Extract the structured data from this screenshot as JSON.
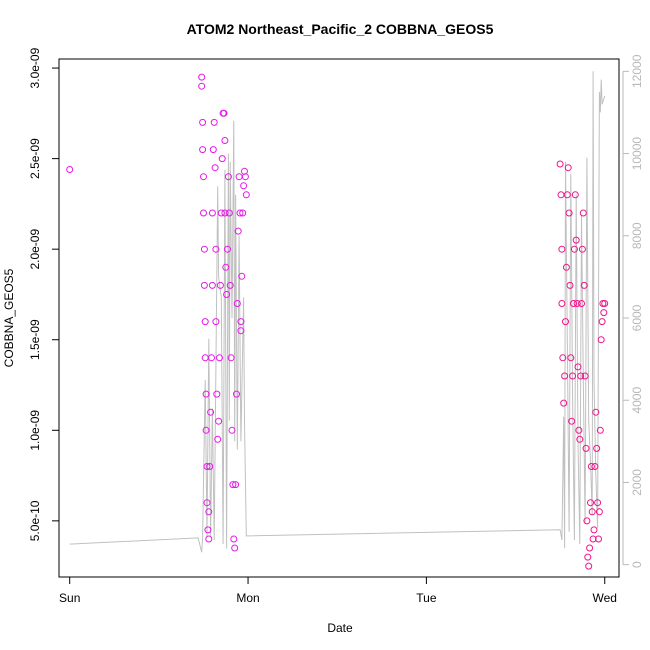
{
  "chart_data": {
    "type": "scatter",
    "title": "ATOM2 Northeast_Pacific_2 COBBNA_GEOS5",
    "xlabel": "Date",
    "ylabel": "COBBNA_GEOS5",
    "x_axis": {
      "kind": "time",
      "range_days": [
        -0.06,
        3.08
      ],
      "ticks": [
        {
          "value": 0,
          "label": "Sun"
        },
        {
          "value": 1,
          "label": "Mon"
        },
        {
          "value": 2,
          "label": "Tue"
        },
        {
          "value": 3,
          "label": "Wed"
        }
      ]
    },
    "y_axis": {
      "range": [
        1.9e-10,
        3.05e-09
      ],
      "ticks": [
        {
          "value": 5e-10,
          "label": "5.0e-10"
        },
        {
          "value": 1e-09,
          "label": "1.0e-09"
        },
        {
          "value": 1.5e-09,
          "label": "1.5e-09"
        },
        {
          "value": 2e-09,
          "label": "2.0e-09"
        },
        {
          "value": 2.5e-09,
          "label": "2.5e-09"
        },
        {
          "value": 3e-09,
          "label": "3.0e-09"
        }
      ]
    },
    "y2_axis": {
      "range": [
        -300,
        12300
      ],
      "color": "#b8b8b8",
      "ticks": [
        {
          "value": 0,
          "label": "0"
        },
        {
          "value": 2000,
          "label": "2000"
        },
        {
          "value": 4000,
          "label": "4000"
        },
        {
          "value": 6000,
          "label": "6000"
        },
        {
          "value": 8000,
          "label": "8000"
        },
        {
          "value": 10000,
          "label": "10000"
        },
        {
          "value": 12000,
          "label": "12000"
        }
      ]
    },
    "grid": false,
    "legend": "none",
    "colors": {
      "early_points": "#e61ae6",
      "late_points": "#f0148c",
      "altitude_line": "#c0c0c0"
    },
    "altitude_series": {
      "axis": "right",
      "points": [
        [
          0.0,
          500
        ],
        [
          0.72,
          650
        ],
        [
          0.74,
          300
        ],
        [
          0.745,
          650
        ],
        [
          0.76,
          4500
        ],
        [
          0.77,
          700
        ],
        [
          0.78,
          5500
        ],
        [
          0.79,
          700
        ],
        [
          0.8,
          3800
        ],
        [
          0.81,
          600
        ],
        [
          0.83,
          9200
        ],
        [
          0.835,
          7000
        ],
        [
          0.85,
          6500
        ],
        [
          0.86,
          500
        ],
        [
          0.87,
          9600
        ],
        [
          0.88,
          400
        ],
        [
          0.89,
          10000
        ],
        [
          0.895,
          3500
        ],
        [
          0.9,
          9800
        ],
        [
          0.91,
          6000
        ],
        [
          0.92,
          10800
        ],
        [
          0.925,
          3000
        ],
        [
          0.93,
          9000
        ],
        [
          0.94,
          2800
        ],
        [
          0.95,
          8000
        ],
        [
          0.96,
          3000
        ],
        [
          0.975,
          6500
        ],
        [
          0.98,
          3500
        ],
        [
          0.99,
          700
        ],
        [
          1.0,
          700
        ],
        [
          2.75,
          850
        ],
        [
          2.76,
          600
        ],
        [
          2.77,
          3600
        ],
        [
          2.775,
          400
        ],
        [
          2.78,
          9800
        ],
        [
          2.79,
          5500
        ],
        [
          2.8,
          800
        ],
        [
          2.81,
          9500
        ],
        [
          2.82,
          4000
        ],
        [
          2.83,
          600
        ],
        [
          2.84,
          9000
        ],
        [
          2.85,
          3000
        ],
        [
          2.86,
          500
        ],
        [
          2.87,
          8500
        ],
        [
          2.88,
          4500
        ],
        [
          2.89,
          1000
        ],
        [
          2.9,
          9900
        ],
        [
          2.91,
          3500
        ],
        [
          2.92,
          2500
        ],
        [
          2.93,
          1200
        ],
        [
          2.935,
          12000
        ],
        [
          2.94,
          4500
        ],
        [
          2.95,
          2200
        ],
        [
          2.96,
          900
        ],
        [
          2.97,
          11500
        ],
        [
          2.975,
          11000
        ],
        [
          2.98,
          11800
        ],
        [
          2.985,
          11200
        ],
        [
          3.0,
          11400
        ]
      ]
    },
    "series": [
      {
        "color": "#e61ae6",
        "points": [
          [
            0.0,
            2.44e-09
          ],
          [
            0.74,
            2.95e-09
          ],
          [
            0.74,
            2.9e-09
          ],
          [
            0.745,
            2.7e-09
          ],
          [
            0.745,
            2.55e-09
          ],
          [
            0.75,
            2.4e-09
          ],
          [
            0.75,
            2.2e-09
          ],
          [
            0.755,
            2e-09
          ],
          [
            0.755,
            1.8e-09
          ],
          [
            0.76,
            1.6e-09
          ],
          [
            0.76,
            1.4e-09
          ],
          [
            0.765,
            1.2e-09
          ],
          [
            0.765,
            1e-09
          ],
          [
            0.77,
            8e-10
          ],
          [
            0.77,
            6e-10
          ],
          [
            0.775,
            4.5e-10
          ],
          [
            0.78,
            4e-10
          ],
          [
            0.78,
            5.5e-10
          ],
          [
            0.785,
            8e-10
          ],
          [
            0.79,
            1.1e-09
          ],
          [
            0.795,
            1.4e-09
          ],
          [
            0.8,
            1.8e-09
          ],
          [
            0.8,
            2.2e-09
          ],
          [
            0.805,
            2.55e-09
          ],
          [
            0.81,
            2.7e-09
          ],
          [
            0.815,
            2.45e-09
          ],
          [
            0.82,
            2e-09
          ],
          [
            0.82,
            1.6e-09
          ],
          [
            0.825,
            1.2e-09
          ],
          [
            0.83,
            9.5e-10
          ],
          [
            0.835,
            1.05e-09
          ],
          [
            0.84,
            1.4e-09
          ],
          [
            0.845,
            1.8e-09
          ],
          [
            0.85,
            2.2e-09
          ],
          [
            0.855,
            2.5e-09
          ],
          [
            0.86,
            2.75e-09
          ],
          [
            0.865,
            2.75e-09
          ],
          [
            0.87,
            2.6e-09
          ],
          [
            0.87,
            2.2e-09
          ],
          [
            0.875,
            1.9e-09
          ],
          [
            0.88,
            1.75e-09
          ],
          [
            0.885,
            2e-09
          ],
          [
            0.89,
            2.4e-09
          ],
          [
            0.895,
            2.2e-09
          ],
          [
            0.9,
            1.8e-09
          ],
          [
            0.905,
            1.4e-09
          ],
          [
            0.91,
            1e-09
          ],
          [
            0.915,
            7e-10
          ],
          [
            0.92,
            4e-10
          ],
          [
            0.925,
            3.5e-10
          ],
          [
            0.93,
            7e-10
          ],
          [
            0.935,
            1.2e-09
          ],
          [
            0.94,
            1.7e-09
          ],
          [
            0.945,
            2.1e-09
          ],
          [
            0.95,
            2.4e-09
          ],
          [
            0.955,
            2.2e-09
          ],
          [
            0.96,
            1.6e-09
          ],
          [
            0.96,
            1.55e-09
          ],
          [
            0.965,
            1.85e-09
          ],
          [
            0.97,
            2.2e-09
          ],
          [
            0.975,
            2.35e-09
          ],
          [
            0.98,
            2.43e-09
          ],
          [
            0.985,
            2.4e-09
          ],
          [
            0.99,
            2.3e-09
          ]
        ]
      },
      {
        "color": "#f0148c",
        "points": [
          [
            2.75,
            2.47e-09
          ],
          [
            2.755,
            2.3e-09
          ],
          [
            2.76,
            2e-09
          ],
          [
            2.76,
            1.7e-09
          ],
          [
            2.765,
            1.4e-09
          ],
          [
            2.77,
            1.15e-09
          ],
          [
            2.775,
            1.3e-09
          ],
          [
            2.78,
            1.6e-09
          ],
          [
            2.785,
            1.9e-09
          ],
          [
            2.79,
            2.3e-09
          ],
          [
            2.795,
            2.45e-09
          ],
          [
            2.8,
            2.2e-09
          ],
          [
            2.805,
            1.8e-09
          ],
          [
            2.81,
            1.4e-09
          ],
          [
            2.815,
            1.05e-09
          ],
          [
            2.82,
            1.3e-09
          ],
          [
            2.825,
            1.7e-09
          ],
          [
            2.83,
            2e-09
          ],
          [
            2.835,
            2.3e-09
          ],
          [
            2.84,
            2.05e-09
          ],
          [
            2.845,
            1.7e-09
          ],
          [
            2.85,
            1.35e-09
          ],
          [
            2.855,
            1e-09
          ],
          [
            2.86,
            9.5e-10
          ],
          [
            2.865,
            1.3e-09
          ],
          [
            2.87,
            1.7e-09
          ],
          [
            2.875,
            2e-09
          ],
          [
            2.88,
            2.2e-09
          ],
          [
            2.885,
            1.8e-09
          ],
          [
            2.89,
            1.3e-09
          ],
          [
            2.895,
            9e-10
          ],
          [
            2.9,
            5e-10
          ],
          [
            2.905,
            3e-10
          ],
          [
            2.91,
            2.5e-10
          ],
          [
            2.915,
            3.5e-10
          ],
          [
            2.92,
            6e-10
          ],
          [
            2.925,
            8e-10
          ],
          [
            2.93,
            5.5e-10
          ],
          [
            2.935,
            4e-10
          ],
          [
            2.94,
            4.5e-10
          ],
          [
            2.945,
            8e-10
          ],
          [
            2.95,
            1.1e-09
          ],
          [
            2.955,
            9e-10
          ],
          [
            2.96,
            6e-10
          ],
          [
            2.965,
            4e-10
          ],
          [
            2.97,
            5.5e-10
          ],
          [
            2.975,
            1e-09
          ],
          [
            2.98,
            1.5e-09
          ],
          [
            2.985,
            1.6e-09
          ],
          [
            2.99,
            1.7e-09
          ],
          [
            2.995,
            1.65e-09
          ],
          [
            3.0,
            1.7e-09
          ]
        ]
      }
    ]
  }
}
